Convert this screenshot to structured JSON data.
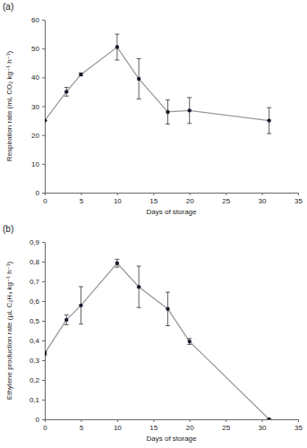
{
  "chart_data": [
    {
      "type": "line",
      "title": "(a)",
      "x_label": "Days of storage",
      "y_label": "Respiration rate (mL CO₂ kg⁻¹ h⁻¹)",
      "x": [
        0,
        3,
        5,
        10,
        13,
        17,
        20,
        31
      ],
      "series": [
        {
          "color": "#999999",
          "marker": "circle",
          "values": [
            25,
            35,
            41,
            50.5,
            39.5,
            28,
            28.5,
            25
          ],
          "error": [
            0,
            1.5,
            0.5,
            4.5,
            7,
            4.2,
            4.5,
            4.5
          ]
        }
      ],
      "xlim": [
        0,
        35
      ],
      "xticks": [
        0,
        5,
        10,
        15,
        20,
        25,
        30,
        35
      ],
      "ylim": [
        0,
        60
      ],
      "yticks": [
        0,
        10,
        20,
        30,
        40,
        50,
        60
      ],
      "grid": false
    },
    {
      "type": "line",
      "title": "(b)",
      "x_label": "Days of storage",
      "y_label": "Ethylene production rate (µL C₂H₄ kg⁻¹ h⁻¹)",
      "x": [
        0,
        3,
        5,
        10,
        13,
        17,
        20,
        31
      ],
      "series": [
        {
          "color": "#999999",
          "marker": "circle",
          "values": [
            0.335,
            0.505,
            0.578,
            0.792,
            0.672,
            0.56,
            0.395,
            0
          ],
          "error": [
            0.01,
            0.025,
            0.095,
            0.02,
            0.105,
            0.085,
            0.015,
            0
          ]
        }
      ],
      "xlim": [
        0,
        35
      ],
      "xticks": [
        0,
        5,
        10,
        15,
        20,
        25,
        30,
        35
      ],
      "ylim": [
        0,
        0.9
      ],
      "yticks": [
        0,
        {
          "value": 0.1,
          "label": "0,1"
        },
        {
          "value": 0.2,
          "label": "0,2"
        },
        {
          "value": 0.3,
          "label": "0,3"
        },
        {
          "value": 0.4,
          "label": "0,4"
        },
        {
          "value": 0.5,
          "label": "0,5"
        },
        {
          "value": 0.6,
          "label": "0,6"
        },
        {
          "value": 0.7,
          "label": "0,7"
        },
        {
          "value": 0.8,
          "label": "0,8"
        },
        {
          "value": 0.9,
          "label": "0,9"
        }
      ],
      "grid": false
    }
  ]
}
